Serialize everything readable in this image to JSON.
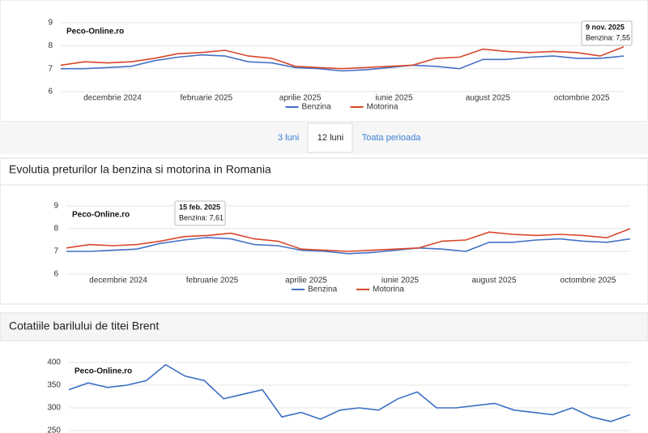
{
  "tabs": [
    "3 luni",
    "12 luni",
    "Toata perioada"
  ],
  "sections": [
    "Evolutia preturilor la benzina si motorina in Romania",
    "Cotatiile barilului de titei Brent"
  ],
  "chart_data": [
    {
      "type": "line",
      "watermark": "Peco-Online.ro",
      "tooltip": {
        "title": "9 nov. 2025",
        "text": "Benzina: 7,55"
      },
      "categories": [
        null,
        "decembrie 2024",
        null,
        null,
        null,
        "februarie 2025",
        null,
        null,
        null,
        "aprilie 2025",
        null,
        null,
        null,
        "iunie 2025",
        null,
        null,
        null,
        "august 2025",
        null,
        null,
        null,
        "octombrie 2025",
        null,
        null,
        null
      ],
      "series": [
        {
          "name": "Benzina",
          "color": "#4472c4",
          "values": [
            7.0,
            7.0,
            7.05,
            7.1,
            7.35,
            7.5,
            7.6,
            7.55,
            7.3,
            7.25,
            7.05,
            7.0,
            6.9,
            6.95,
            7.05,
            7.15,
            7.1,
            7.0,
            7.4,
            7.4,
            7.5,
            7.55,
            7.45,
            7.45,
            7.55
          ]
        },
        {
          "name": "Motorina",
          "color": "#d9472b",
          "values": [
            7.15,
            7.3,
            7.25,
            7.3,
            7.45,
            7.65,
            7.7,
            7.8,
            7.55,
            7.45,
            7.1,
            7.05,
            7.0,
            7.05,
            7.1,
            7.15,
            7.45,
            7.5,
            7.85,
            7.75,
            7.7,
            7.75,
            7.7,
            7.55,
            7.95
          ]
        }
      ],
      "ylim": [
        6,
        9
      ],
      "yticks": [
        6,
        7,
        8,
        9
      ],
      "grid": true,
      "legend": "bottom"
    },
    {
      "type": "line",
      "watermark": "Peco-Online.ro",
      "tooltip": {
        "title": "15 feb. 2025",
        "text": "Benzina: 7,61"
      },
      "categories": [
        null,
        "decembrie 2024",
        null,
        null,
        null,
        "februarie 2025",
        null,
        null,
        null,
        "aprilie 2025",
        null,
        null,
        null,
        "iunie 2025",
        null,
        null,
        null,
        "august 2025",
        null,
        null,
        null,
        "octombrie 2025",
        null,
        null,
        null
      ],
      "series": [
        {
          "name": "Benzina",
          "color": "#4472c4",
          "values": [
            7.0,
            7.0,
            7.05,
            7.1,
            7.35,
            7.5,
            7.61,
            7.55,
            7.3,
            7.25,
            7.05,
            7.0,
            6.9,
            6.95,
            7.05,
            7.15,
            7.1,
            7.0,
            7.4,
            7.4,
            7.5,
            7.55,
            7.45,
            7.4,
            7.55
          ]
        },
        {
          "name": "Motorina",
          "color": "#d9472b",
          "values": [
            7.15,
            7.3,
            7.25,
            7.3,
            7.45,
            7.65,
            7.7,
            7.8,
            7.55,
            7.45,
            7.1,
            7.05,
            7.0,
            7.05,
            7.1,
            7.15,
            7.45,
            7.5,
            7.85,
            7.75,
            7.7,
            7.75,
            7.7,
            7.6,
            8.0
          ]
        }
      ],
      "ylim": [
        6,
        9
      ],
      "yticks": [
        6,
        7,
        8,
        9
      ],
      "grid": true,
      "legend": "bottom"
    },
    {
      "type": "line",
      "watermark": "Peco-Online.ro",
      "categories": [
        null,
        null,
        null,
        null,
        null,
        null,
        null,
        null,
        null,
        null,
        null,
        null,
        null,
        null,
        null,
        null,
        null,
        null,
        null,
        null,
        null,
        null,
        null,
        null,
        null,
        null,
        null,
        null,
        null,
        null
      ],
      "series": [
        {
          "color": "#3a6fc4",
          "values": [
            340,
            355,
            345,
            350,
            360,
            395,
            370,
            360,
            320,
            330,
            340,
            280,
            290,
            275,
            295,
            300,
            295,
            320,
            335,
            300,
            300,
            305,
            310,
            295,
            290,
            285,
            300,
            280,
            270,
            285
          ]
        }
      ],
      "ylim": [
        250,
        400
      ],
      "yticks": [
        250,
        300,
        350,
        400
      ],
      "grid": true
    }
  ]
}
